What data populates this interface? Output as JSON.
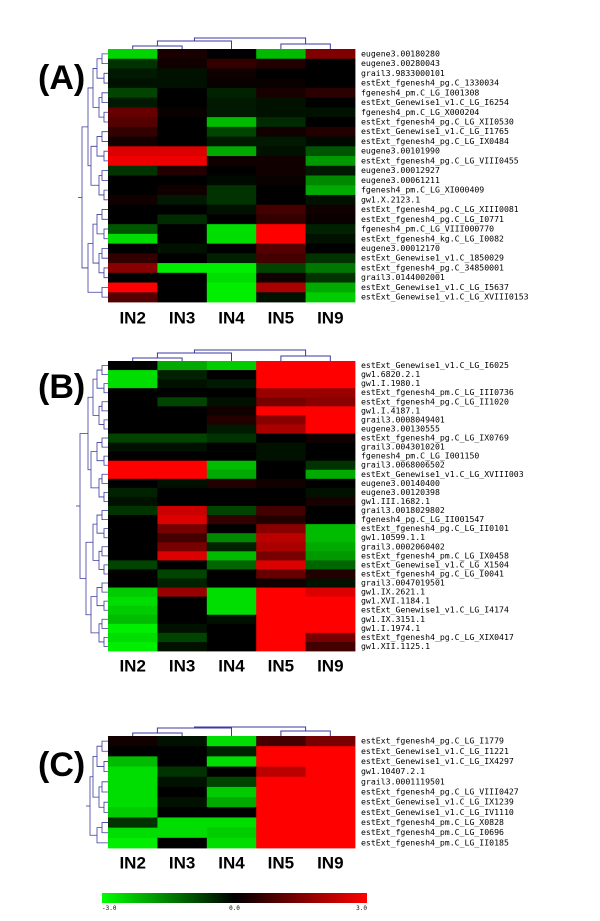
{
  "color_scale": {
    "low": "#00ff00",
    "mid": "#000000",
    "high": "#ff0000",
    "dendrogram_color": "#3a3aa0",
    "tick_labels": [
      "-3.0",
      "0.0",
      "3.0"
    ],
    "ticks": [
      -3.0,
      0.0,
      3.0
    ]
  },
  "chart_data": [
    {
      "type": "heatmap",
      "panel": "(A)",
      "columns": [
        "IN2",
        "IN3",
        "IN4",
        "IN5",
        "IN9"
      ],
      "rows": [
        "eugene3.00180280",
        "eugene3.00280043",
        "grail3.9833000101",
        "estExt_fgenesh4_pg.C_1330034",
        "fgenesh4_pm.C_LG_I001308",
        "estExt_Genewise1_v1.C_LG_I6254",
        "fgenesh4_pm.C_LG_X000204",
        "estExt_fgenesh4_pg.C_LG_XII0530",
        "estExt_Genewise1_v1.C_LG_I1765",
        "estExt_fgenesh4_pg.C_LG_IX0484",
        "eugene3.00101990",
        "estExt_fgenesh4_pg.C_LG_VIII0455",
        "eugene3.00012927",
        "eugene3.00061211",
        "fgenesh4_pm.C_LG_XI000409",
        "gw1.X.2123.1",
        "estExt_fgenesh4_pg.C_LG_XIII0081",
        "estExt_fgenesh4_pg.C_LG_I0771",
        "fgenesh4_pm.C_LG_VIII000770",
        "estExt_fgenesh4_kg.C_LG_I0082",
        "eugene3.00012170",
        "estExt_Genewise1_v1.C_1850029",
        "estExt_fgenesh4_pg.C_34850001",
        "grail3.0144002001",
        "estExt_Genewise1_v1.C_LG_I5637",
        "estExt_Genewise1_v1.C_LG_XVIII0153"
      ],
      "values": [
        [
          -2.5,
          0.3,
          0.0,
          -2.2,
          1.5
        ],
        [
          -0.6,
          0.2,
          0.6,
          0.4,
          0.0
        ],
        [
          -0.3,
          -0.2,
          0.2,
          0.0,
          0.0
        ],
        [
          -0.2,
          -0.2,
          0.1,
          0.1,
          0.0
        ],
        [
          -0.8,
          0.0,
          -0.4,
          0.3,
          0.5
        ],
        [
          -0.3,
          0.0,
          -0.3,
          -0.2,
          0.0
        ],
        [
          1.2,
          0.1,
          -0.3,
          -0.2,
          -0.2
        ],
        [
          1.0,
          0.0,
          -2.2,
          -0.5,
          0.0
        ],
        [
          0.6,
          0.0,
          -0.8,
          0.2,
          0.4
        ],
        [
          0.2,
          0.0,
          -0.3,
          -0.3,
          -0.1
        ],
        [
          2.6,
          2.6,
          -2.0,
          -0.2,
          -1.0
        ],
        [
          2.8,
          2.8,
          0.2,
          0.2,
          -1.8
        ],
        [
          -0.6,
          0.4,
          0.0,
          0.2,
          -0.3
        ],
        [
          0.0,
          0.0,
          -0.1,
          0.1,
          -1.6
        ],
        [
          0.0,
          0.2,
          -0.6,
          0.0,
          -2.0
        ],
        [
          0.2,
          -0.3,
          -0.6,
          0.0,
          -0.2
        ],
        [
          0.0,
          0.0,
          -0.2,
          0.8,
          0.2
        ],
        [
          0.0,
          -0.5,
          0.0,
          0.6,
          0.1
        ],
        [
          -1.0,
          0.0,
          -2.6,
          3.0,
          -0.4
        ],
        [
          -2.6,
          0.0,
          -2.6,
          3.0,
          -0.2
        ],
        [
          0.0,
          -0.2,
          0.0,
          1.0,
          0.0
        ],
        [
          0.6,
          0.0,
          -0.4,
          0.8,
          -0.6
        ],
        [
          1.6,
          -2.8,
          -2.8,
          -0.8,
          -1.4
        ],
        [
          0.0,
          0.0,
          -2.6,
          0.2,
          -0.6
        ],
        [
          3.0,
          0.0,
          -2.8,
          2.0,
          -2.0
        ],
        [
          1.0,
          0.0,
          -2.8,
          -0.2,
          -2.4
        ]
      ]
    },
    {
      "type": "heatmap",
      "panel": "(B)",
      "columns": [
        "IN2",
        "IN3",
        "IN4",
        "IN5",
        "IN9"
      ],
      "rows": [
        "estExt_Genewise1_v1.C_LG_I6025",
        "gw1.6820.2.1",
        "gw1.I.1980.1",
        "estExt_fgenesh4_pm.C_LG_III0736",
        "estExt_fgenesh4_pg.C_LG_II1020",
        "gw1.I.4187.1",
        "grail3.0008049401",
        "eugene3.00130555",
        "estExt_fgenesh4_pg.C_LG_IX0769",
        "grail3.0043010201",
        "fgenesh4_pm.C_LG_I001150",
        "grail3.0068006502",
        "estExt_Genewise1_v1.C_LG_XVIII003",
        "eugene3.00140400",
        "eugene3.00120398",
        "gw1.III.1682.1",
        "grail3.0018029802",
        "fgenesh4_pg.C_LG_II001547",
        "estExt_fgenesh4_pg.C_LG_II0101",
        "gw1.10599.1.1",
        "grail3.0002060402",
        "estExt_fgenesh4_pm.C_LG_IX0458",
        "estExt_Genewise1_v1.C_LG_X1504",
        "estExt_fgenesh4_pg.C_LG_I0041",
        "grail3.0047019501",
        "gw1.IX.2621.1",
        "gw1.XVI.1184.1",
        "estExt_Genewise1_v1.C_LG_I4174",
        "gw1.IX.3151.1",
        "gw1.I.1974.1",
        "estExt_fgenesh4_pg.C_LG_XIX0417",
        "gw1.XII.1125.1"
      ],
      "values": [
        [
          0.0,
          -2.0,
          -2.4,
          3.0,
          3.0
        ],
        [
          -2.6,
          -0.4,
          0.0,
          3.0,
          3.0
        ],
        [
          -2.6,
          -0.2,
          -0.3,
          3.0,
          3.0
        ],
        [
          0.0,
          0.0,
          0.0,
          1.8,
          1.8
        ],
        [
          0.0,
          -0.8,
          -0.2,
          1.4,
          1.6
        ],
        [
          0.0,
          0.0,
          0.2,
          3.0,
          3.0
        ],
        [
          0.0,
          0.0,
          0.4,
          1.6,
          3.0
        ],
        [
          0.0,
          0.0,
          -0.3,
          2.0,
          3.0
        ],
        [
          -0.8,
          -0.8,
          -0.6,
          0.0,
          0.2
        ],
        [
          -0.2,
          -0.2,
          0.0,
          -0.2,
          0.0
        ],
        [
          0.0,
          0.0,
          0.0,
          -0.2,
          0.0
        ],
        [
          3.0,
          3.0,
          -2.2,
          0.0,
          -0.6
        ],
        [
          3.0,
          3.0,
          -2.0,
          0.0,
          -2.0
        ],
        [
          0.0,
          -0.2,
          0.4,
          0.2,
          0.0
        ],
        [
          -0.4,
          0.0,
          0.0,
          0.0,
          -0.2
        ],
        [
          -0.2,
          0.0,
          0.0,
          0.0,
          0.3
        ],
        [
          -0.6,
          2.4,
          -0.8,
          0.8,
          0.0
        ],
        [
          0.0,
          2.6,
          0.6,
          0.4,
          0.0
        ],
        [
          0.0,
          1.4,
          0.0,
          1.6,
          -2.2
        ],
        [
          0.0,
          0.8,
          -1.6,
          2.2,
          -2.2
        ],
        [
          0.0,
          1.4,
          -0.4,
          2.0,
          -2.0
        ],
        [
          0.0,
          2.6,
          -2.2,
          1.4,
          -1.8
        ],
        [
          -0.8,
          0.0,
          -1.2,
          2.6,
          -1.2
        ],
        [
          0.0,
          -0.8,
          0.0,
          1.2,
          0.4
        ],
        [
          0.0,
          -0.4,
          0.0,
          0.2,
          -0.2
        ],
        [
          -2.4,
          1.8,
          -2.6,
          3.0,
          2.6
        ],
        [
          -2.6,
          0.0,
          -2.6,
          3.0,
          3.0
        ],
        [
          -2.4,
          0.0,
          -2.6,
          3.0,
          3.0
        ],
        [
          -2.2,
          0.0,
          -0.2,
          3.0,
          3.0
        ],
        [
          -2.8,
          -0.2,
          0.0,
          3.0,
          3.0
        ],
        [
          -2.6,
          -0.8,
          0.0,
          3.0,
          1.4
        ],
        [
          -2.8,
          -0.2,
          0.0,
          3.0,
          0.8
        ]
      ]
    },
    {
      "type": "heatmap",
      "panel": "(C)",
      "columns": [
        "IN2",
        "IN3",
        "IN4",
        "IN5",
        "IN9"
      ],
      "rows": [
        "estExt_fgenesh4_pg.C_LG_I1779",
        "estExt_Genewise1_v1.C_LG_I1221",
        "estExt_Genewise1_v1.C_LG_IX4297",
        "gw1.10407.2.1",
        "grail3.0001119501",
        "estExt_fgenesh4_pg.C_LG_VIII0427",
        "estExt_Genewise1_v1.C_LG_IX1239",
        "estExt_Genewise1_v1.C_LG_IV1110",
        "estExt_fgenesh4_pm.C_LG_X0828",
        "estExt_fgenesh4_pm.C_LG_I0696",
        "estExt_fgenesh4_pm.C_LG_II0185"
      ],
      "values": [
        [
          0.2,
          -0.2,
          -2.6,
          0.8,
          1.4
        ],
        [
          0.0,
          0.0,
          -0.4,
          3.0,
          3.0
        ],
        [
          -2.2,
          0.0,
          -2.6,
          3.0,
          3.0
        ],
        [
          -2.6,
          -0.6,
          0.0,
          2.2,
          3.0
        ],
        [
          -2.6,
          -0.2,
          -0.8,
          3.0,
          3.0
        ],
        [
          -2.6,
          0.0,
          -2.4,
          3.0,
          3.0
        ],
        [
          -2.6,
          -0.2,
          -2.0,
          3.0,
          3.0
        ],
        [
          -2.4,
          0.0,
          0.0,
          3.0,
          3.0
        ],
        [
          -0.6,
          -2.6,
          -2.6,
          3.0,
          3.0
        ],
        [
          -2.6,
          -2.6,
          -2.4,
          3.0,
          3.0
        ],
        [
          -2.8,
          0.0,
          -2.6,
          3.0,
          3.0
        ]
      ]
    }
  ]
}
